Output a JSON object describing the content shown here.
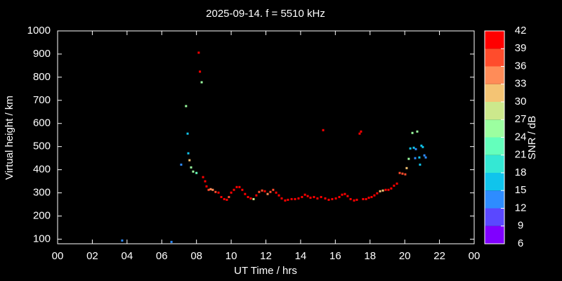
{
  "chart_data": {
    "type": "scatter",
    "title": "2025-09-14. f = 5510 kHz",
    "x_label": "UT Time / hrs",
    "y_label": "Virtual height / km",
    "xlim": [
      0,
      24
    ],
    "ylim": [
      80,
      1000
    ],
    "xticks": [
      {
        "value": 0,
        "label": "00"
      },
      {
        "value": 2,
        "label": "02"
      },
      {
        "value": 4,
        "label": "04"
      },
      {
        "value": 6,
        "label": "06"
      },
      {
        "value": 8,
        "label": "08"
      },
      10,
      12,
      14,
      16,
      18,
      20,
      22,
      {
        "value": 24,
        "label": "00"
      }
    ],
    "yticks": [
      100,
      200,
      300,
      400,
      500,
      600,
      700,
      800,
      900,
      1000
    ],
    "x": [
      3.72,
      6.56,
      7.12,
      7.4,
      7.49,
      7.53,
      7.6,
      7.69,
      7.81,
      8.0,
      8.13,
      8.2,
      8.3,
      8.38,
      8.5,
      8.58,
      8.7,
      8.82,
      8.94,
      9.1,
      9.27,
      9.43,
      9.6,
      9.75,
      9.87,
      10.0,
      10.16,
      10.32,
      10.48,
      10.64,
      10.8,
      10.97,
      11.13,
      11.29,
      11.45,
      11.61,
      11.78,
      11.94,
      12.1,
      12.26,
      12.42,
      12.59,
      12.75,
      12.91,
      13.11,
      13.27,
      13.48,
      13.68,
      13.88,
      14.08,
      14.25,
      14.41,
      14.57,
      14.77,
      14.97,
      15.18,
      15.3,
      15.42,
      15.62,
      15.82,
      16.03,
      16.23,
      16.39,
      16.55,
      16.71,
      16.88,
      17.08,
      17.24,
      17.4,
      17.48,
      17.6,
      17.77,
      17.93,
      18.09,
      18.25,
      18.41,
      18.58,
      18.74,
      18.9,
      19.06,
      19.22,
      19.38,
      19.55,
      19.71,
      19.87,
      20.03,
      20.11,
      20.23,
      20.32,
      20.44,
      20.52,
      20.6,
      20.64,
      20.72,
      20.84,
      20.88,
      20.96,
      21.04,
      21.13,
      21.21
    ],
    "y": [
      94,
      88,
      422,
      675,
      556,
      471,
      441,
      410,
      392,
      386,
      906,
      824,
      778,
      368,
      350,
      328,
      313,
      316,
      313,
      304,
      301,
      282,
      273,
      270,
      282,
      301,
      313,
      325,
      325,
      313,
      295,
      282,
      276,
      273,
      289,
      304,
      310,
      307,
      295,
      304,
      313,
      301,
      289,
      276,
      267,
      270,
      273,
      273,
      276,
      282,
      292,
      286,
      279,
      282,
      276,
      282,
      571,
      276,
      270,
      273,
      276,
      282,
      292,
      295,
      286,
      273,
      267,
      270,
      556,
      565,
      273,
      273,
      279,
      282,
      289,
      298,
      307,
      310,
      313,
      313,
      319,
      331,
      340,
      386,
      383,
      380,
      407,
      447,
      492,
      559,
      495,
      450,
      489,
      565,
      453,
      422,
      504,
      498,
      462,
      453
    ],
    "snr": [
      12,
      12,
      12,
      24,
      15,
      15,
      30,
      24,
      24,
      21,
      42,
      39,
      24,
      39,
      39,
      39,
      36,
      33,
      33,
      36,
      39,
      39,
      39,
      39,
      36,
      39,
      39,
      39,
      39,
      39,
      39,
      39,
      39,
      27,
      39,
      36,
      36,
      39,
      33,
      36,
      36,
      39,
      39,
      39,
      39,
      39,
      39,
      39,
      39,
      39,
      39,
      39,
      39,
      39,
      39,
      39,
      42,
      39,
      39,
      39,
      39,
      39,
      39,
      39,
      39,
      39,
      39,
      39,
      42,
      42,
      39,
      39,
      39,
      39,
      39,
      39,
      30,
      30,
      39,
      39,
      39,
      39,
      39,
      36,
      36,
      36,
      30,
      24,
      15,
      24,
      15,
      12,
      12,
      24,
      15,
      15,
      15,
      15,
      12,
      12
    ],
    "colorbar": {
      "label": "SNR / dB",
      "ticks": [
        6,
        9,
        12,
        15,
        18,
        21,
        24,
        27,
        30,
        33,
        36,
        39,
        42
      ],
      "colors": [
        "#8000ff",
        "#5a48ff",
        "#2e8cff",
        "#10c4ec",
        "#34e8d4",
        "#64ffbc",
        "#9cffa0",
        "#cce88c",
        "#f4c474",
        "#ff8c58",
        "#ff4c2c",
        "#ff0000"
      ]
    }
  }
}
